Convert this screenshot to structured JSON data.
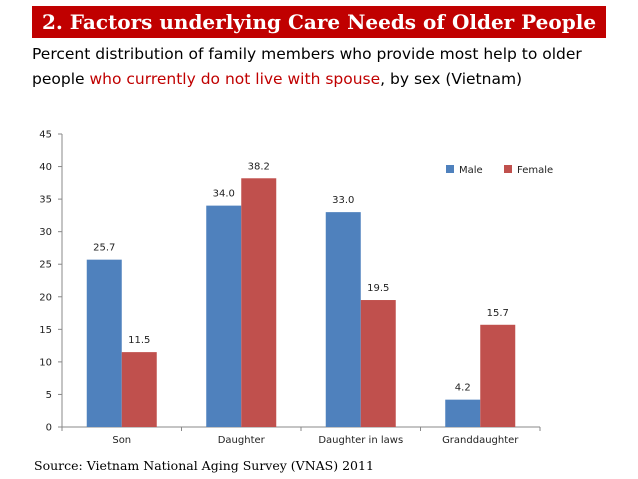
{
  "slide": {
    "title": "2. Factors underlying Care Needs of Older People",
    "subtitle_part1": "Percent distribution of family members who provide most help to older people ",
    "subtitle_highlight": "who currently do not live with spouse",
    "subtitle_part2": ", by sex (Vietnam)",
    "source": "Source: Vietnam National Aging Survey (VNAS) 2011"
  },
  "colors": {
    "title_bg": "#c00000",
    "highlight": "#c00000",
    "male": "#4f81bd",
    "female": "#c0504d"
  },
  "chart_data": {
    "type": "bar",
    "title": "",
    "xlabel": "",
    "ylabel": "",
    "ylim": [
      0,
      45
    ],
    "yticks": [
      0,
      5,
      10,
      15,
      20,
      25,
      30,
      35,
      40,
      45
    ],
    "categories": [
      "Son",
      "Daughter",
      "Daughter in laws",
      "Granddaughter"
    ],
    "series": [
      {
        "name": "Male",
        "values": [
          25.7,
          34.0,
          33.0,
          4.2
        ],
        "labels": [
          "25.7",
          "34.0",
          "33.0",
          "4.2"
        ]
      },
      {
        "name": "Female",
        "values": [
          11.5,
          38.2,
          19.5,
          15.7
        ],
        "labels": [
          "11.5",
          "38.2",
          "19.5",
          "15.7"
        ]
      }
    ],
    "legend": "top-right",
    "grid": false
  }
}
